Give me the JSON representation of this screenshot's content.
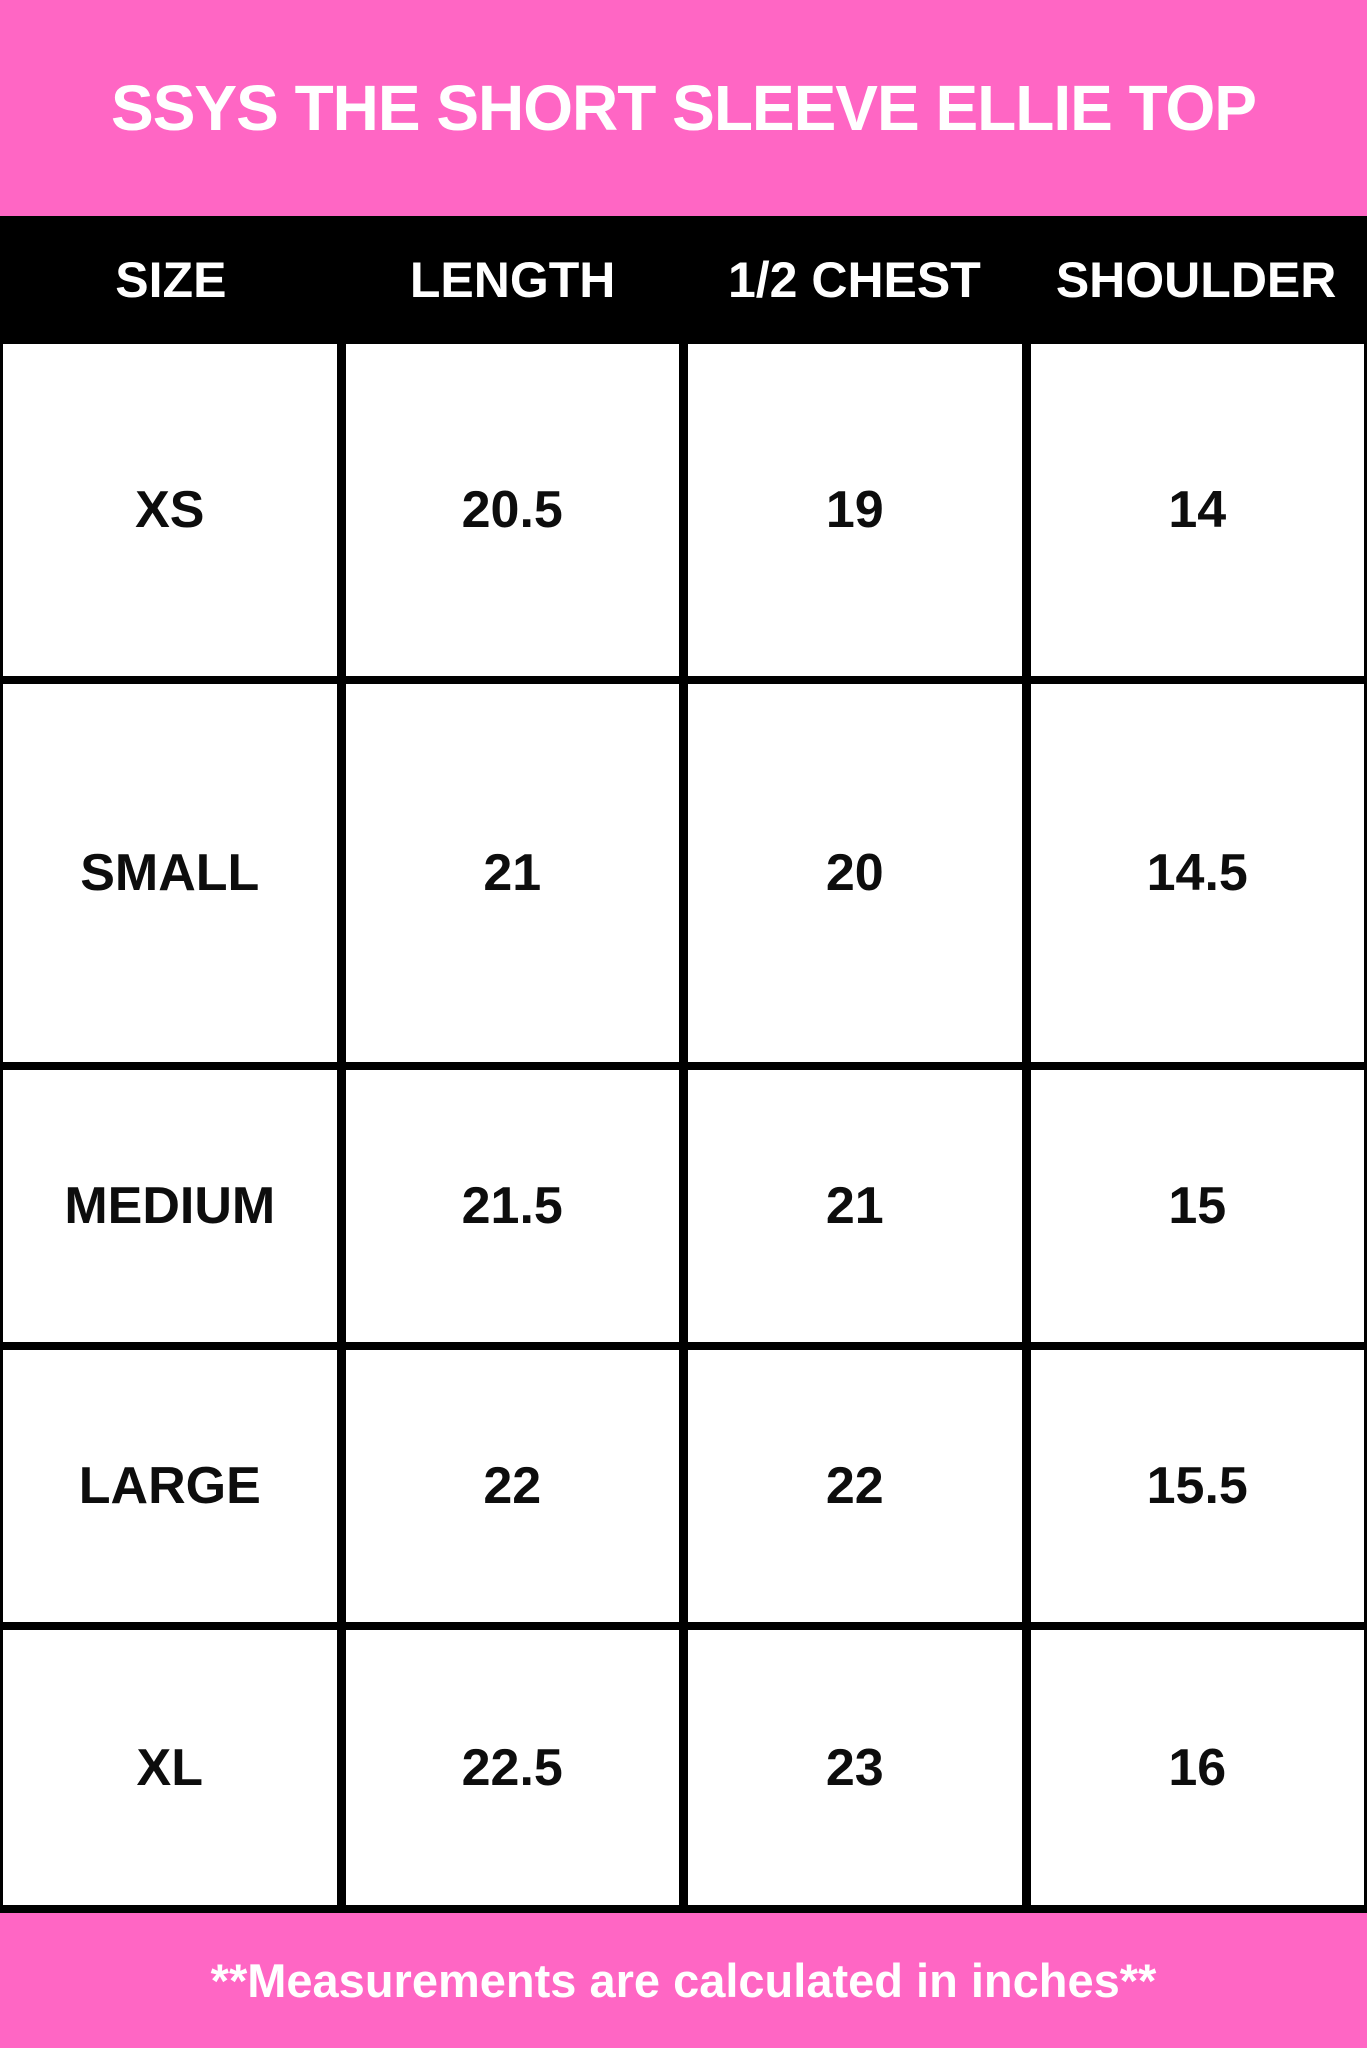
{
  "title": "SSYS THE SHORT SLEEVE ELLIE TOP",
  "table": {
    "columns": [
      "SIZE",
      "LENGTH",
      "1/2 CHEST",
      "SHOULDER"
    ],
    "rows": [
      {
        "size": "XS",
        "length": "20.5",
        "half_chest": "19",
        "shoulder": "14"
      },
      {
        "size": "SMALL",
        "length": "21",
        "half_chest": "20",
        "shoulder": "14.5"
      },
      {
        "size": "MEDIUM",
        "length": "21.5",
        "half_chest": "21",
        "shoulder": "15"
      },
      {
        "size": "LARGE",
        "length": "22",
        "half_chest": "22",
        "shoulder": "15.5"
      },
      {
        "size": "XL",
        "length": "22.5",
        "half_chest": "23",
        "shoulder": "16"
      }
    ]
  },
  "footer": {
    "note": "**Measurements are calculated in inches**"
  },
  "colors": {
    "pink": "#ff66c4",
    "black": "#000000",
    "white": "#ffffff"
  },
  "chart_data": {
    "type": "table",
    "title": "SSYS THE SHORT SLEEVE ELLIE TOP",
    "columns": [
      "SIZE",
      "LENGTH",
      "1/2 CHEST",
      "SHOULDER"
    ],
    "rows": [
      [
        "XS",
        20.5,
        19,
        14
      ],
      [
        "SMALL",
        21,
        20,
        14.5
      ],
      [
        "MEDIUM",
        21.5,
        21,
        15
      ],
      [
        "LARGE",
        22,
        22,
        15.5
      ],
      [
        "XL",
        22.5,
        23,
        16
      ]
    ],
    "note": "**Measurements are calculated in inches**"
  }
}
